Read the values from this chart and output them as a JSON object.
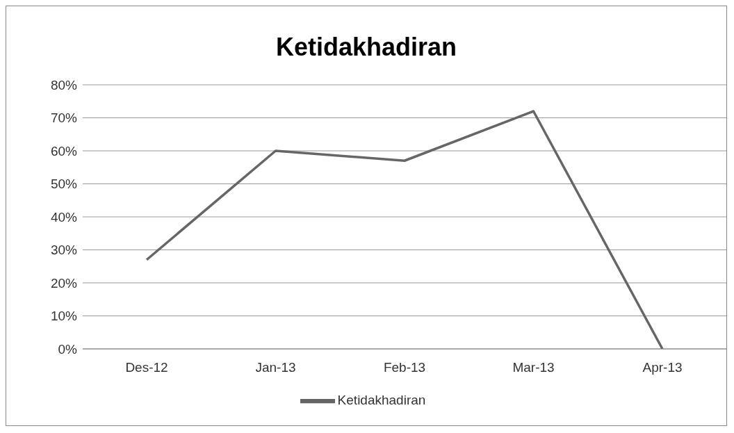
{
  "chart_data": {
    "type": "line",
    "title": "Ketidakhadiran",
    "categories": [
      "Des-12",
      "Jan-13",
      "Feb-13",
      "Mar-13",
      "Apr-13"
    ],
    "series": [
      {
        "name": "Ketidakhadiran",
        "color": "#666666",
        "values": [
          27,
          60,
          57,
          72,
          0
        ]
      }
    ],
    "ylim": [
      0,
      80
    ],
    "yticks": [
      {
        "value": 0,
        "label": "0%"
      },
      {
        "value": 10,
        "label": "10%"
      },
      {
        "value": 20,
        "label": "20%"
      },
      {
        "value": 30,
        "label": "30%"
      },
      {
        "value": 40,
        "label": "40%"
      },
      {
        "value": 50,
        "label": "50%"
      },
      {
        "value": 60,
        "label": "60%"
      },
      {
        "value": 70,
        "label": "70%"
      },
      {
        "value": 80,
        "label": "80%"
      }
    ],
    "grid": "y",
    "legend": "bottom",
    "line_style": "solid"
  }
}
